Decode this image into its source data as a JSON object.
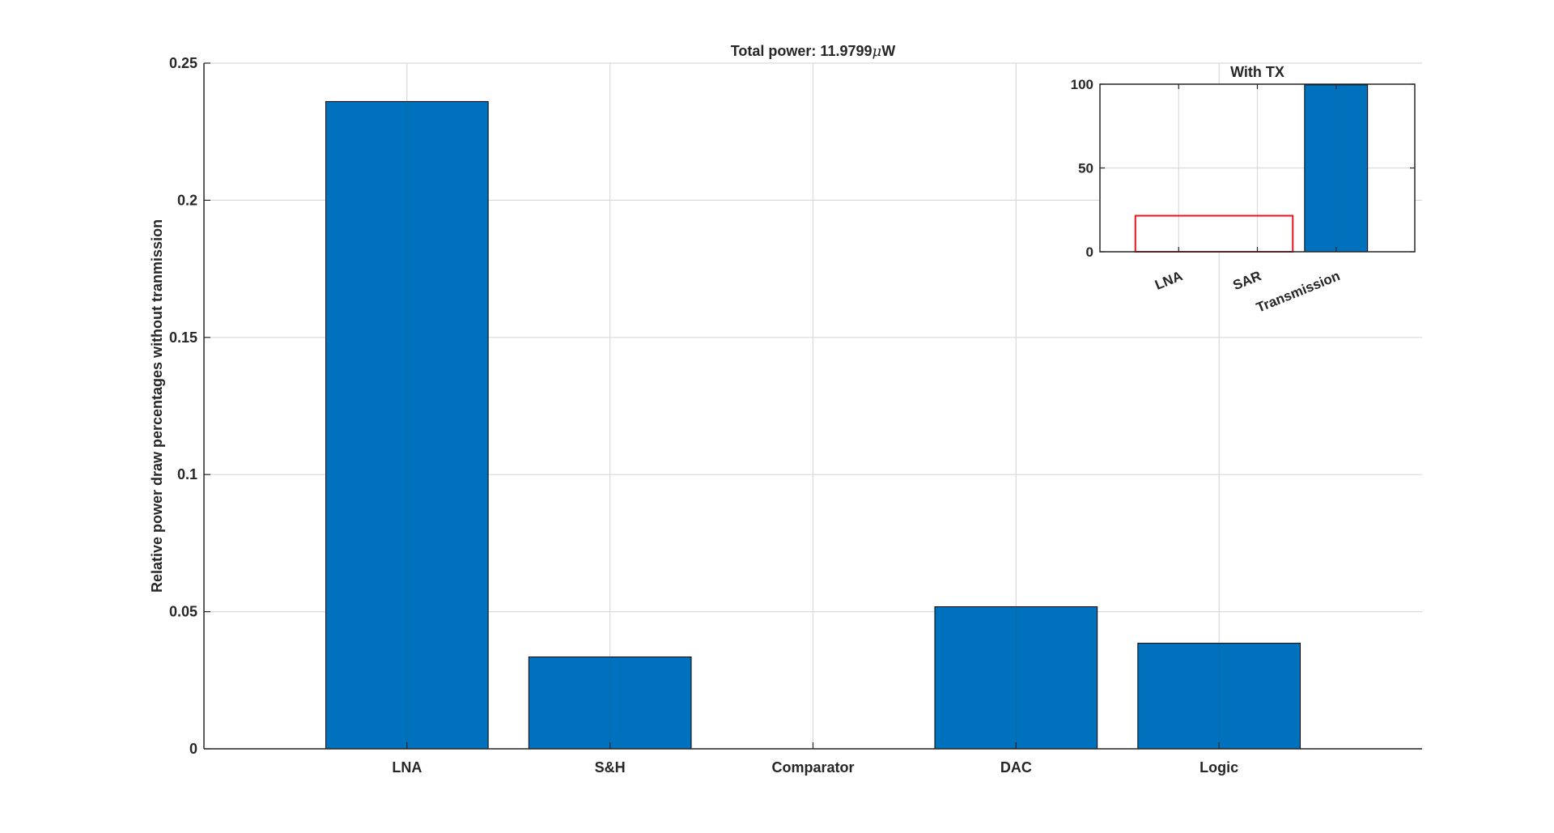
{
  "chart_data": [
    {
      "type": "bar",
      "title_prefix": "Total power: 11.9799",
      "title_mu": "μ",
      "title_suffix": "W",
      "xlabel": "",
      "ylabel": "Relative power draw percentages without tranmission",
      "categories": [
        "LNA",
        "S&H",
        "Comparator",
        "DAC",
        "Logic"
      ],
      "values": [
        0.236,
        0.0335,
        0.0,
        0.0518,
        0.0385
      ],
      "ylim": [
        0,
        0.25
      ],
      "xlim": [
        0,
        6
      ],
      "yticks": [
        0,
        0.05,
        0.1,
        0.15,
        0.2,
        0.25
      ],
      "ytick_labels": [
        "0",
        "0.05",
        "0.1",
        "0.15",
        "0.2",
        "0.25"
      ],
      "grid": true,
      "bar_color": "#0072BD"
    },
    {
      "type": "bar",
      "title": "With TX",
      "xlabel": "",
      "ylabel": "",
      "categories": [
        "LNA",
        "SAR",
        "Transmission"
      ],
      "values": [
        0.236,
        0.124,
        99.64
      ],
      "ylim": [
        0,
        100
      ],
      "xlim": [
        0,
        4
      ],
      "yticks": [
        0,
        50,
        100
      ],
      "ytick_labels": [
        "0",
        "50",
        "100"
      ],
      "grid": true,
      "bar_color": "#0072BD",
      "highlight_box": {
        "x_range": [
          0.45,
          2.45
        ],
        "y_range": [
          0,
          21.5
        ],
        "color": "#e8141b"
      }
    }
  ]
}
